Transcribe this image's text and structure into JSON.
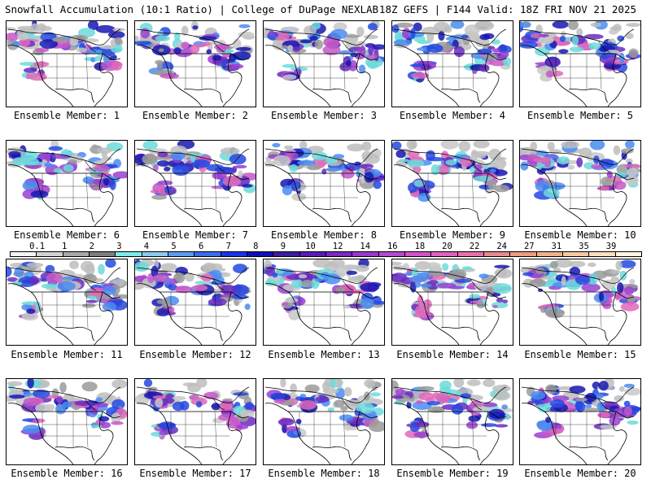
{
  "header": {
    "left": "Snowfall Accumulation (10:1 Ratio) | College of DuPage NEXLAB",
    "right": "18Z GEFS | F144 Valid: 18Z FRI NOV 21 2025"
  },
  "members": [
    {
      "label": "Ensemble Member: 1"
    },
    {
      "label": "Ensemble Member: 2"
    },
    {
      "label": "Ensemble Member: 3"
    },
    {
      "label": "Ensemble Member: 4"
    },
    {
      "label": "Ensemble Member: 5"
    },
    {
      "label": "Ensemble Member: 6"
    },
    {
      "label": "Ensemble Member: 7"
    },
    {
      "label": "Ensemble Member: 8"
    },
    {
      "label": "Ensemble Member: 9"
    },
    {
      "label": "Ensemble Member: 10"
    },
    {
      "label": "Ensemble Member: 11"
    },
    {
      "label": "Ensemble Member: 12"
    },
    {
      "label": "Ensemble Member: 13"
    },
    {
      "label": "Ensemble Member: 14"
    },
    {
      "label": "Ensemble Member: 15"
    },
    {
      "label": "Ensemble Member: 16"
    },
    {
      "label": "Ensemble Member: 17"
    },
    {
      "label": "Ensemble Member: 18"
    },
    {
      "label": "Ensemble Member: 19"
    },
    {
      "label": "Ensemble Member: 20"
    }
  ],
  "colorbar": {
    "ticks": [
      "0.1",
      "1",
      "2",
      "3",
      "4",
      "5",
      "6",
      "7",
      "8",
      "9",
      "10",
      "12",
      "14",
      "16",
      "18",
      "20",
      "22",
      "24",
      "27",
      "31",
      "35",
      "39"
    ],
    "colors": [
      "#f4f4f4",
      "#d2d2d2",
      "#a8a8a8",
      "#7e7e7e",
      "#7fe8e8",
      "#8cc8f0",
      "#5a9cf0",
      "#3a6cf0",
      "#1c34e8",
      "#1010b8",
      "#3c1ca0",
      "#5a1cb8",
      "#7a28c8",
      "#9a38d0",
      "#b848d0",
      "#d054c8",
      "#e060c0",
      "#e870a8",
      "#e88890",
      "#ec9c80",
      "#f0b088",
      "#f4c8a0",
      "#f8e0c0",
      "#fff4e0"
    ]
  }
}
